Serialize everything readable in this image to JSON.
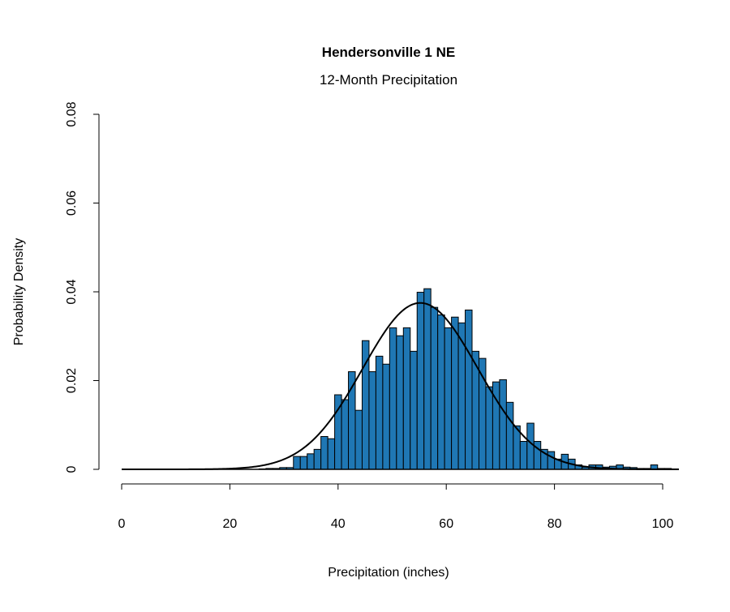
{
  "chart_data": {
    "type": "bar",
    "subtype": "histogram with normal density curve",
    "title": "Hendersonville 1 NE",
    "subtitle": "12-Month Precipitation",
    "xlabel": "Precipitation (inches)",
    "ylabel": "Probability Density",
    "xlim": [
      0,
      103
    ],
    "ylim": [
      0,
      0.08
    ],
    "xticks": [
      "0",
      "20",
      "40",
      "60",
      "80",
      "100"
    ],
    "yticks": [
      "0",
      "0.02",
      "0.04",
      "0.06",
      "0.08"
    ],
    "grid": false,
    "bar_color": "#1f77b4",
    "bin_width": 1.27,
    "bins_start": 25.4,
    "values": [
      0.0001,
      0.0002,
      0.0002,
      0.0004,
      0.0004,
      0.0029,
      0.0029,
      0.0035,
      0.0045,
      0.0074,
      0.0069,
      0.0168,
      0.0157,
      0.022,
      0.0133,
      0.029,
      0.022,
      0.0255,
      0.0237,
      0.0319,
      0.0301,
      0.0319,
      0.0266,
      0.0399,
      0.0407,
      0.0365,
      0.0348,
      0.0319,
      0.0343,
      0.033,
      0.0359,
      0.0266,
      0.025,
      0.0186,
      0.0197,
      0.0202,
      0.0151,
      0.0098,
      0.0063,
      0.0104,
      0.0063,
      0.0045,
      0.004,
      0.0023,
      0.0034,
      0.0023,
      0.001,
      0.0005,
      0.001,
      0.001,
      0.0005,
      0.0007,
      0.001,
      0.0005,
      0.0004,
      0.0002,
      0.0002,
      0.001,
      0.0002,
      0.0002,
      0.0001
    ],
    "normal_curve": {
      "mean": 55.2,
      "sd": 10.64,
      "color": "#000000"
    }
  }
}
